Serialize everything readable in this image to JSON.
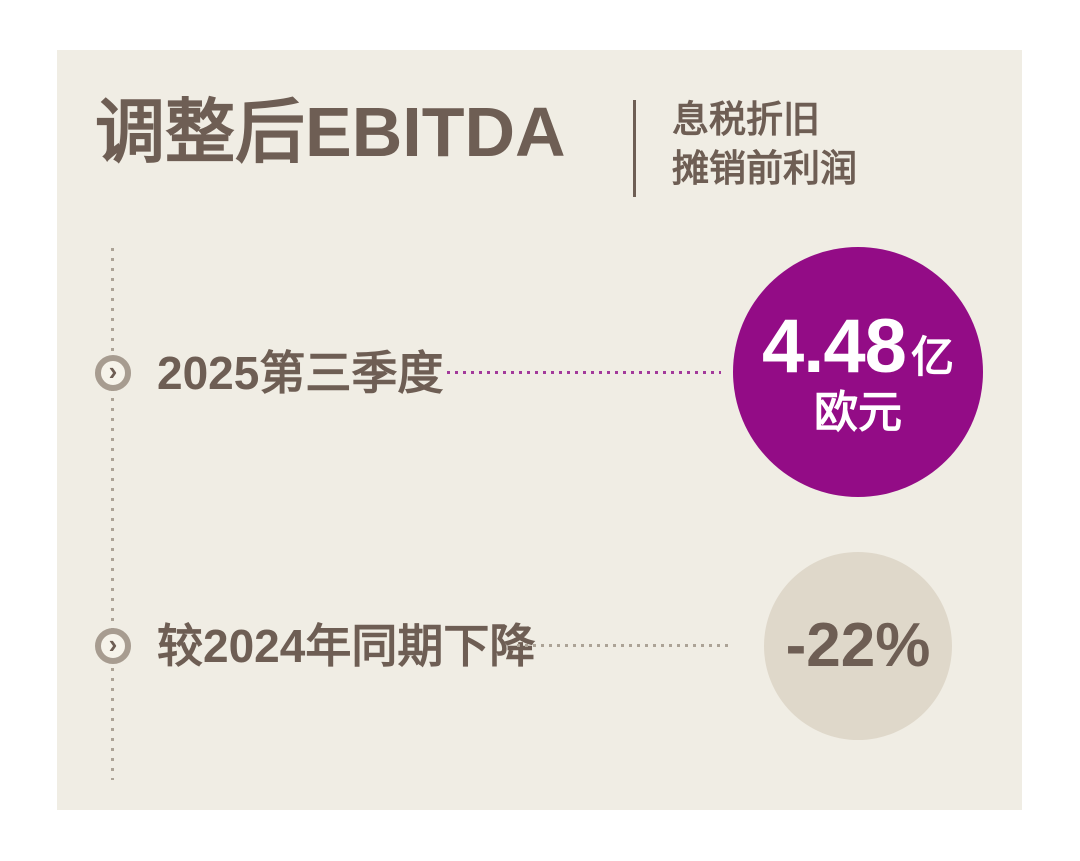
{
  "header": {
    "title": "调整后EBITDA",
    "subtitle_lines": [
      "息税折旧",
      "摊销前利润"
    ]
  },
  "rows": [
    {
      "label": "2025第三季度",
      "value": "4.48",
      "value_unit": "亿",
      "currency": "欧元"
    },
    {
      "label": "较2024年同期下降",
      "value": "-22%"
    }
  ],
  "icons": {
    "chevron_right": "›"
  },
  "colors": {
    "panel_bg": "#F0EDE4",
    "text_dark": "#6E5E54",
    "purple_circle": "#930C86",
    "purple_dots": "#A33A9B",
    "beige_circle": "#DFD8CA",
    "neutral_dots": "#ACA396",
    "bullet_ring": "#A79C90",
    "bullet_inner": "#F6F3EA",
    "circle_text": "#FFFFFF"
  }
}
